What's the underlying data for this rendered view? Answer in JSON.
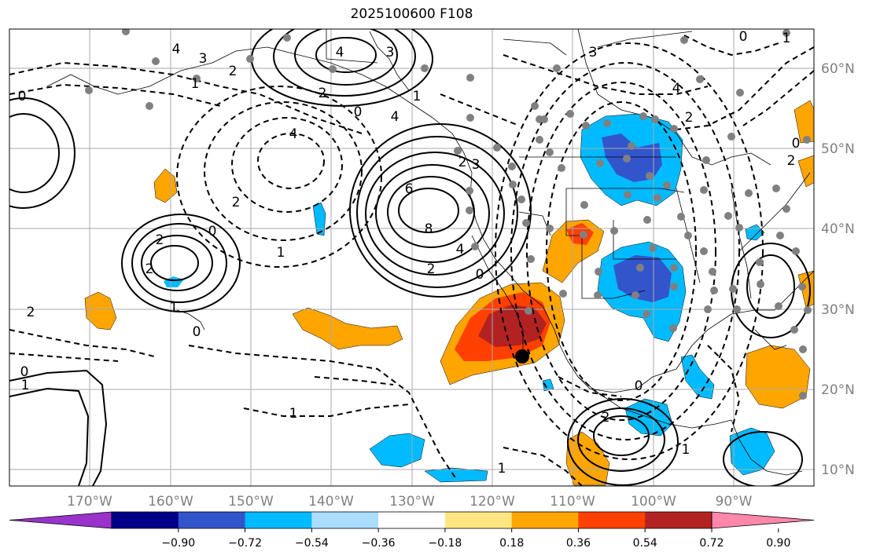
{
  "title": "2025100600 F108",
  "colors": {
    "land_outline": "#000000",
    "grid": "#aaaaaa",
    "axis_label": "#808080",
    "station_dot": "#808080"
  },
  "lon_labels": [
    "170°W",
    "160°W",
    "150°W",
    "140°W",
    "130°W",
    "120°W",
    "110°W",
    "100°W",
    "90°W"
  ],
  "lat_labels": [
    "60°N",
    "50°N",
    "40°N",
    "30°N",
    "20°N",
    "10°N"
  ],
  "colorbar": {
    "colors": [
      "#9933cc",
      "#000088",
      "#3355cc",
      "#00bbff",
      "#aaddff",
      "#ffffff",
      "#ffe680",
      "#ffa500",
      "#ff4000",
      "#b22222",
      "#ff88aa"
    ],
    "ticks": [
      "−0.90",
      "−0.72",
      "−0.54",
      "−0.36",
      "−0.18",
      "0.18",
      "0.36",
      "0.54",
      "0.72",
      "0.90"
    ]
  },
  "contour_labels": [
    {
      "text": "4"
    },
    {
      "text": "3"
    },
    {
      "text": "2"
    },
    {
      "text": "1"
    },
    {
      "text": "0"
    },
    {
      "text": "4"
    },
    {
      "text": "3"
    },
    {
      "text": "4"
    },
    {
      "text": "2"
    },
    {
      "text": "1"
    },
    {
      "text": "0"
    },
    {
      "text": "6"
    },
    {
      "text": "8"
    },
    {
      "text": "4"
    },
    {
      "text": "2"
    },
    {
      "text": "0"
    },
    {
      "text": "2"
    },
    {
      "text": "2"
    },
    {
      "text": "1"
    },
    {
      "text": "0"
    },
    {
      "text": "2"
    },
    {
      "text": "1"
    },
    {
      "text": "0"
    },
    {
      "text": "2"
    },
    {
      "text": "1"
    },
    {
      "text": "1"
    },
    {
      "text": "0"
    },
    {
      "text": "1"
    },
    {
      "text": "4"
    },
    {
      "text": "2"
    },
    {
      "text": "3"
    },
    {
      "text": "4"
    },
    {
      "text": "1"
    },
    {
      "text": "2"
    },
    {
      "text": "0"
    },
    {
      "text": "2"
    },
    {
      "text": "0"
    },
    {
      "text": "1"
    },
    {
      "text": "2"
    },
    {
      "text": "0"
    },
    {
      "text": "3"
    }
  ]
}
